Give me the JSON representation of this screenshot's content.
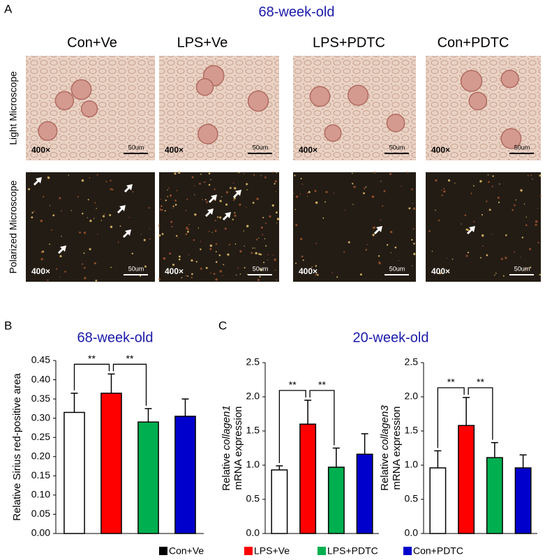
{
  "panel_labels": [
    "A",
    "B",
    "C"
  ],
  "panel_a": {
    "title": "68-week-old",
    "columns": [
      "Con+Ve",
      "LPS+Ve",
      "LPS+PDTC",
      "Con+PDTC"
    ],
    "rows": [
      "Light  Microscope",
      "Polarized Microscope"
    ],
    "magnification": "400×",
    "scale_bar": "50um"
  },
  "panel_c_title": "20-week-old",
  "legend": [
    {
      "name": "Con+Ve",
      "color": "#000000"
    },
    {
      "name": "LPS+Ve",
      "color": "#ff0000"
    },
    {
      "name": "LPS+PDTC",
      "color": "#00b050"
    },
    {
      "name": "Con+PDTC",
      "color": "#0000cc"
    }
  ],
  "chart_data": [
    {
      "type": "bar",
      "title": "68-week-old",
      "ylabel": "Relative Sirius red-positive area",
      "values": [
        0.315,
        0.365,
        0.29,
        0.305
      ],
      "errors": [
        0.05,
        0.05,
        0.035,
        0.045
      ],
      "colors": [
        "#ffffff",
        "#ff0000",
        "#00b050",
        "#0000cc"
      ],
      "significance": [
        "**",
        "**"
      ],
      "ylim": [
        0,
        0.45
      ],
      "yticks": [
        {
          "value": 0,
          "label": "0.00"
        },
        0.05,
        {
          "value": 0.1,
          "label": "0.10"
        },
        0.15,
        {
          "value": 0.2,
          "label": "0.20"
        },
        0.25,
        {
          "value": 0.3,
          "label": "0.30"
        },
        0.35,
        {
          "value": 0.4,
          "label": "0.40"
        },
        0.45
      ]
    },
    {
      "type": "bar",
      "ylabel": {
        "line1": "Relative ",
        "gene": "collagen1",
        "line2": "mRNA expression"
      },
      "values": [
        0.93,
        1.6,
        0.97,
        1.16
      ],
      "errors": [
        0.06,
        0.35,
        0.28,
        0.3
      ],
      "colors": [
        "#ffffff",
        "#ff0000",
        "#00b050",
        "#0000cc"
      ],
      "significance": [
        "**",
        "**"
      ],
      "ylim": [
        0,
        2.5
      ],
      "yticks": [
        {
          "value": 0,
          "label": "0.0"
        },
        0.5,
        {
          "value": 1,
          "label": "1.0"
        },
        1.5,
        {
          "value": 2,
          "label": "2.0"
        },
        2.5
      ]
    },
    {
      "type": "bar",
      "ylabel": {
        "line1": "Relative ",
        "gene": "collagen3",
        "line2": "mRNA expression"
      },
      "values": [
        0.96,
        1.58,
        1.11,
        0.96
      ],
      "errors": [
        0.25,
        0.41,
        0.22,
        0.19
      ],
      "colors": [
        "#ffffff",
        "#ff0000",
        "#00b050",
        "#0000cc"
      ],
      "significance": [
        "**",
        "**"
      ],
      "ylim": [
        0,
        2.5
      ],
      "yticks": [
        {
          "value": 0,
          "label": "0.0"
        },
        0.5,
        {
          "value": 1,
          "label": "1.0"
        },
        1.5,
        {
          "value": 2,
          "label": "2.0"
        },
        2.5
      ]
    }
  ]
}
